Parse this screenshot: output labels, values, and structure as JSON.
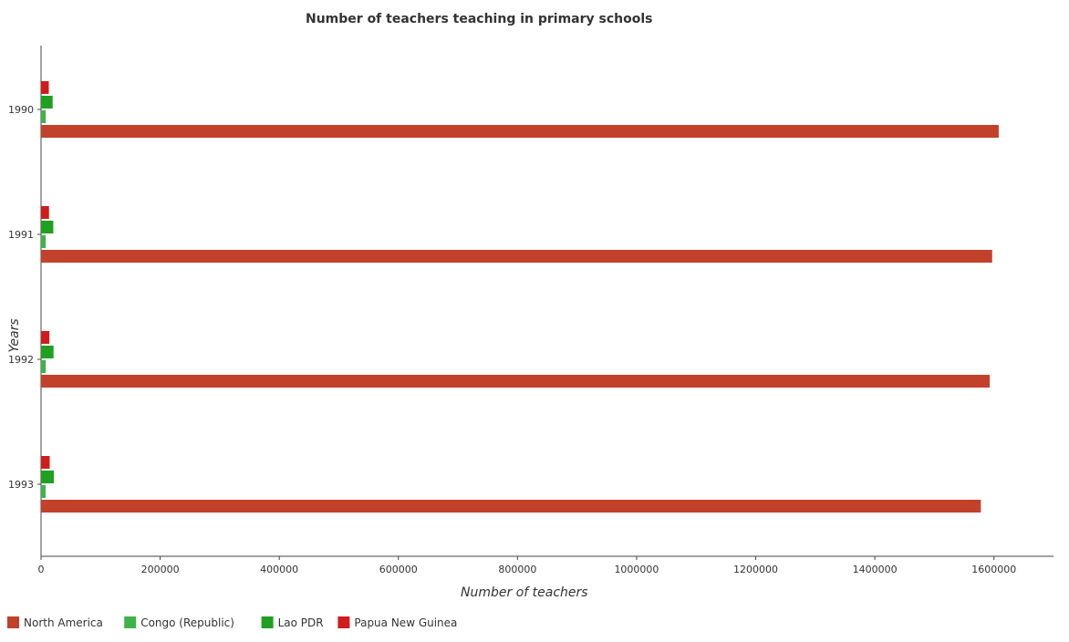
{
  "chart_data": {
    "type": "bar",
    "orientation": "horizontal",
    "title": "Number of teachers teaching in primary schools",
    "xlabel": "Number of teachers",
    "ylabel": "Years",
    "categories": [
      "1990",
      "1991",
      "1992",
      "1993"
    ],
    "xlim": [
      0,
      1700000
    ],
    "xticks": [
      0,
      200000,
      400000,
      600000,
      800000,
      1000000,
      1200000,
      1400000,
      1600000
    ],
    "xtick_labels": [
      "0",
      "200000",
      "400000",
      "600000",
      "800000",
      "1000000",
      "1200000",
      "1400000",
      "1600000"
    ],
    "series": [
      {
        "name": "North America",
        "color": "#c2412b",
        "values": [
          1608000,
          1597000,
          1593000,
          1578000
        ]
      },
      {
        "name": "Congo (Republic)",
        "color": "#3fb24a",
        "values": [
          7700,
          7800,
          7900,
          7600
        ]
      },
      {
        "name": "Lao PDR",
        "color": "#20a020",
        "values": [
          19500,
          20600,
          21000,
          21500
        ]
      },
      {
        "name": "Papua New Guinea",
        "color": "#cf1d1d",
        "values": [
          13000,
          13400,
          14000,
          14500
        ]
      }
    ],
    "legend_position": "bottom-left",
    "grid": false
  }
}
